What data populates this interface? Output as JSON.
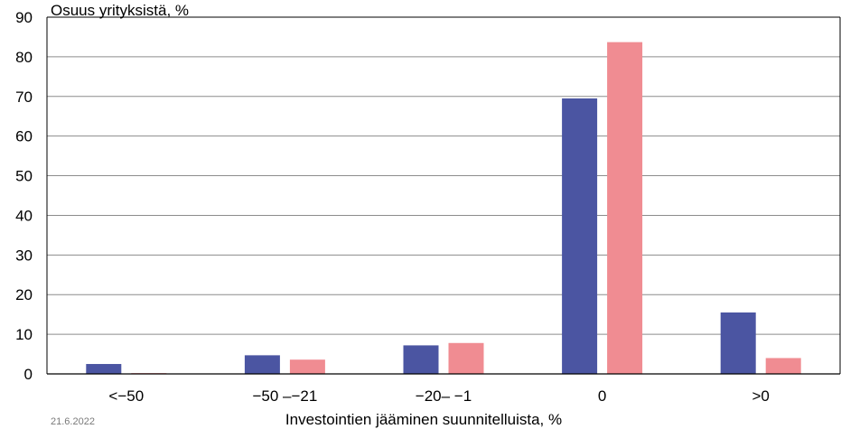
{
  "chart_data": {
    "type": "bar",
    "categories": [
      "<−50",
      "−50 –−21",
      "−20– −1",
      "0",
      ">0"
    ],
    "series": [
      {
        "values": [
          2.5,
          4.7,
          7.2,
          69.5,
          15.5
        ],
        "color": "#4b55a2"
      },
      {
        "values": [
          0.2,
          3.6,
          7.8,
          83.7,
          4.0
        ],
        "color": "#f08c92"
      }
    ],
    "ylabel": "Osuus yrityksistä, %",
    "xlabel": "Investointien jääminen suunnitelluista, %",
    "ylim": [
      0,
      90
    ],
    "yticks": [
      0,
      10,
      20,
      30,
      40,
      50,
      60,
      70,
      80,
      90
    ],
    "grid": true,
    "date": "21.6.2022"
  }
}
